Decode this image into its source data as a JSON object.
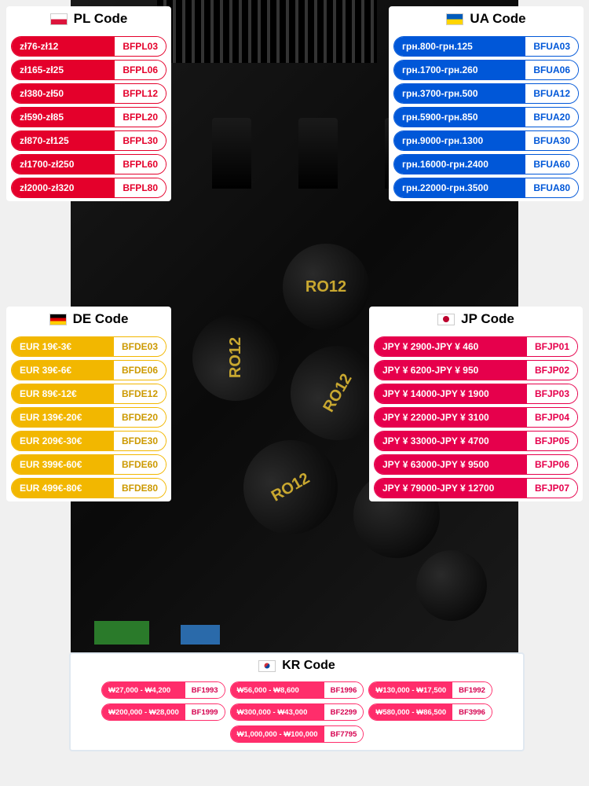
{
  "bg": {
    "cap_label": "RO12"
  },
  "panels": {
    "pl": {
      "title": "PL Code",
      "flag_top": "#ffffff",
      "flag_bottom": "#dc143c",
      "pill_bg": "#e4002b",
      "code_color": "#e4002b",
      "rows": [
        {
          "range": "zł76-zł12",
          "code": "BFPL03"
        },
        {
          "range": "zł165-zł25",
          "code": "BFPL06"
        },
        {
          "range": "zł380-zł50",
          "code": "BFPL12"
        },
        {
          "range": "zł590-zł85",
          "code": "BFPL20"
        },
        {
          "range": "zł870-zł125",
          "code": "BFPL30"
        },
        {
          "range": "zł1700-zł250",
          "code": "BFPL60"
        },
        {
          "range": "zł2000-zł320",
          "code": "BFPL80"
        }
      ]
    },
    "ua": {
      "title": "UA Code",
      "flag_top": "#005bbb",
      "flag_bottom": "#ffd500",
      "pill_bg": "#0057d8",
      "code_color": "#0057d8",
      "rows": [
        {
          "range": "грн.800-грн.125",
          "code": "BFUA03"
        },
        {
          "range": "грн.1700-грн.260",
          "code": "BFUA06"
        },
        {
          "range": "грн.3700-грн.500",
          "code": "BFUA12"
        },
        {
          "range": "грн.5900-грн.850",
          "code": "BFUA20"
        },
        {
          "range": "грн.9000-грн.1300",
          "code": "BFUA30"
        },
        {
          "range": "грн.16000-грн.2400",
          "code": "BFUA60"
        },
        {
          "range": "грн.22000-грн.3500",
          "code": "BFUA80"
        }
      ]
    },
    "de": {
      "title": "DE Code",
      "flag_stripes": [
        "#000000",
        "#dd0000",
        "#ffce00"
      ],
      "pill_bg": "#f2b700",
      "code_color": "#cc9900",
      "rows": [
        {
          "range": "EUR 19€-3€",
          "code": "BFDE03"
        },
        {
          "range": "EUR 39€-6€",
          "code": "BFDE06"
        },
        {
          "range": "EUR 89€-12€",
          "code": "BFDE12"
        },
        {
          "range": "EUR 139€-20€",
          "code": "BFDE20"
        },
        {
          "range": "EUR 209€-30€",
          "code": "BFDE30"
        },
        {
          "range": "EUR 399€-60€",
          "code": "BFDE60"
        },
        {
          "range": "EUR 499€-80€",
          "code": "BFDE80"
        }
      ]
    },
    "jp": {
      "title": "JP Code",
      "flag_bg": "#ffffff",
      "flag_dot": "#bc002d",
      "pill_bg": "#e6004c",
      "code_color": "#e6004c",
      "rows": [
        {
          "range": "JPY ¥ 2900-JPY ¥ 460",
          "code": "BFJP01"
        },
        {
          "range": "JPY ¥ 6200-JPY ¥ 950",
          "code": "BFJP02"
        },
        {
          "range": "JPY ¥ 14000-JPY ¥ 1900",
          "code": "BFJP03"
        },
        {
          "range": "JPY ¥ 22000-JPY ¥ 3100",
          "code": "BFJP04"
        },
        {
          "range": "JPY ¥ 33000-JPY ¥ 4700",
          "code": "BFJP05"
        },
        {
          "range": "JPY ¥ 63000-JPY ¥ 9500",
          "code": "BFJP06"
        },
        {
          "range": "JPY ¥ 79000-JPY ¥ 12700",
          "code": "BFJP07"
        }
      ]
    },
    "kr": {
      "title": "KR Code",
      "pill_bg": "#ff2d6b",
      "code_color": "#d6004f",
      "columns": [
        [
          {
            "range": "₩27,000 - ₩4,200",
            "code": "BF1993"
          },
          {
            "range": "₩200,000 - ₩28,000",
            "code": "BF1999"
          }
        ],
        [
          {
            "range": "₩56,000 - ₩8,600",
            "code": "BF1996"
          },
          {
            "range": "₩300,000 - ₩43,000",
            "code": "BF2299"
          },
          {
            "range": "₩1,000,000 - ₩100,000",
            "code": "BF7795"
          }
        ],
        [
          {
            "range": "₩130,000 - ₩17,500",
            "code": "BF1992"
          },
          {
            "range": "₩580,000 - ₩86,500",
            "code": "BF3996"
          }
        ]
      ]
    }
  }
}
